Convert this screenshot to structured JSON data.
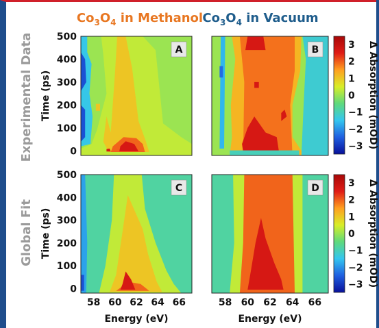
{
  "chart_data": {
    "type": "heatmap",
    "column_titles": [
      {
        "pre": "Co",
        "sub1": "3",
        "mid": "O",
        "sub2": "4",
        "post": " in Methanol",
        "color": "#e87722"
      },
      {
        "pre": "Co",
        "sub1": "3",
        "mid": "O",
        "sub2": "4",
        "post": " in Vacuum",
        "color": "#1f5d8c"
      }
    ],
    "row_titles": [
      "Experimental Data",
      "Global Fit"
    ],
    "xlabel": "Energy (eV)",
    "ylabel": "Time (ps)",
    "xlim": [
      56.8,
      67.2
    ],
    "ylim": [
      -20,
      500
    ],
    "x_ticks": [
      "58",
      "60",
      "62",
      "64",
      "66"
    ],
    "y_ticks": [
      "0",
      "100",
      "200",
      "300",
      "400",
      "500"
    ],
    "colorbar": {
      "label": "Δ Absorption (mOD)",
      "ticks": [
        "3",
        "2",
        "1",
        "0",
        "−1",
        "−2",
        "−3"
      ],
      "range": [
        -3.4,
        3.4
      ],
      "colors": [
        "#08109a",
        "#1f5fe0",
        "#33c6ef",
        "#5ed97c",
        "#d8ee28",
        "#ffa020",
        "#e01c16",
        "#a80808"
      ]
    },
    "panels": [
      {
        "label": "A",
        "background": 0.0,
        "layers": [
          {
            "level": -1.4,
            "polygon": [
              [
                56.8,
                20
              ],
              [
                57.7,
                30
              ],
              [
                57.9,
                150
              ],
              [
                57.6,
                250
              ],
              [
                57.8,
                380
              ],
              [
                57.4,
                430
              ],
              [
                57.4,
                500
              ],
              [
                56.8,
                500
              ]
            ]
          },
          {
            "level": -2.6,
            "polygon": [
              [
                56.8,
                40
              ],
              [
                57.2,
                60
              ],
              [
                57.2,
                180
              ],
              [
                56.8,
                200
              ]
            ]
          },
          {
            "level": -2.6,
            "polygon": [
              [
                56.8,
                260
              ],
              [
                57.3,
                300
              ],
              [
                57.2,
                400
              ],
              [
                56.8,
                430
              ]
            ]
          },
          {
            "level": 0.3,
            "polygon": [
              [
                56.8,
                -20
              ],
              [
                67.2,
                -20
              ],
              [
                67.2,
                30
              ],
              [
                66.2,
                60
              ],
              [
                64.5,
                120
              ],
              [
                63.8,
                440
              ],
              [
                62.6,
                500
              ],
              [
                58.7,
                500
              ],
              [
                58.9,
                420
              ],
              [
                59.2,
                250
              ],
              [
                58.3,
                90
              ],
              [
                57.8,
                30
              ],
              [
                56.8,
                10
              ]
            ]
          },
          {
            "level": 1.0,
            "polygon": [
              [
                59.2,
                150
              ],
              [
                59.6,
                80
              ],
              [
                60.0,
                340
              ],
              [
                60.2,
                500
              ],
              [
                61.0,
                500
              ],
              [
                61.6,
                360
              ],
              [
                62.2,
                130
              ],
              [
                62.9,
                40
              ],
              [
                63.2,
                -5
              ],
              [
                59.4,
                -5
              ],
              [
                58.9,
                40
              ]
            ]
          },
          {
            "level": 1.0,
            "polygon": [
              [
                58.2,
                175
              ],
              [
                58.6,
                175
              ],
              [
                58.6,
                205
              ],
              [
                58.2,
                205
              ]
            ]
          },
          {
            "level": 1.9,
            "polygon": [
              [
                59.6,
                -5
              ],
              [
                62.8,
                -5
              ],
              [
                62.6,
                30
              ],
              [
                62.0,
                55
              ],
              [
                60.8,
                60
              ],
              [
                59.8,
                20
              ]
            ]
          },
          {
            "level": 2.6,
            "polygon": [
              [
                60.4,
                -2
              ],
              [
                62.2,
                -2
              ],
              [
                61.8,
                30
              ],
              [
                61.0,
                42
              ],
              [
                60.5,
                20
              ]
            ]
          },
          {
            "level": 2.6,
            "polygon": [
              [
                59.2,
                -3
              ],
              [
                59.6,
                -3
              ],
              [
                59.5,
                10
              ],
              [
                59.2,
                8
              ]
            ]
          }
        ]
      },
      {
        "label": "B",
        "background": 0.0,
        "layers": [
          {
            "level": -1.2,
            "polygon": [
              [
                64.8,
                -20
              ],
              [
                67.2,
                -20
              ],
              [
                67.2,
                500
              ],
              [
                64.9,
                500
              ],
              [
                65.2,
                400
              ],
              [
                65.0,
                200
              ]
            ]
          },
          {
            "level": -1.6,
            "polygon": [
              [
                57.5,
                10
              ],
              [
                57.9,
                10
              ],
              [
                58.0,
                500
              ],
              [
                57.6,
                500
              ]
            ]
          },
          {
            "level": -2.3,
            "polygon": [
              [
                57.5,
                320
              ],
              [
                57.8,
                320
              ],
              [
                57.8,
                370
              ],
              [
                57.5,
                370
              ]
            ]
          },
          {
            "level": 1.2,
            "polygon": [
              [
                58.4,
                -20
              ],
              [
                64.8,
                -20
              ],
              [
                64.8,
                0
              ],
              [
                64.0,
                60
              ],
              [
                64.0,
                200
              ],
              [
                64.7,
                350
              ],
              [
                64.8,
                500
              ],
              [
                58.6,
                500
              ],
              [
                58.9,
                400
              ],
              [
                58.5,
                200
              ],
              [
                58.6,
                60
              ]
            ]
          },
          {
            "level": 1.8,
            "polygon": [
              [
                59.6,
                -20
              ],
              [
                64.0,
                -20
              ],
              [
                63.8,
                200
              ],
              [
                64.2,
                350
              ],
              [
                64.2,
                500
              ],
              [
                59.3,
                500
              ],
              [
                59.7,
                300
              ]
            ]
          },
          {
            "level": 2.6,
            "polygon": [
              [
                59.6,
                -5
              ],
              [
                62.8,
                -5
              ],
              [
                62.6,
                60
              ],
              [
                61.6,
                80
              ],
              [
                60.6,
                150
              ],
              [
                60.0,
                100
              ],
              [
                59.5,
                30
              ]
            ]
          },
          {
            "level": 2.6,
            "polygon": [
              [
                59.8,
                440
              ],
              [
                61.6,
                440
              ],
              [
                61.4,
                500
              ],
              [
                60.0,
                500
              ]
            ]
          },
          {
            "level": 2.6,
            "polygon": [
              [
                60.6,
                275
              ],
              [
                61.0,
                275
              ],
              [
                61.0,
                300
              ],
              [
                60.6,
                300
              ]
            ]
          },
          {
            "level": 2.6,
            "polygon": [
              [
                63.0,
                130
              ],
              [
                63.5,
                150
              ],
              [
                63.3,
                180
              ],
              [
                63.0,
                165
              ]
            ]
          },
          {
            "level": -1.0,
            "polygon": [
              [
                58.4,
                -20
              ],
              [
                64.6,
                -20
              ],
              [
                64.6,
                2
              ],
              [
                58.4,
                2
              ]
            ]
          }
        ]
      },
      {
        "label": "C",
        "background": -0.8,
        "layers": [
          {
            "level": -1.8,
            "polygon": [
              [
                56.8,
                -20
              ],
              [
                57.3,
                -20
              ],
              [
                57.4,
                200
              ],
              [
                57.2,
                500
              ],
              [
                56.8,
                500
              ]
            ]
          },
          {
            "level": -2.6,
            "polygon": [
              [
                56.8,
                -10
              ],
              [
                57.1,
                -10
              ],
              [
                57.1,
                60
              ],
              [
                56.8,
                60
              ]
            ]
          },
          {
            "level": 0.3,
            "polygon": [
              [
                58.5,
                -20
              ],
              [
                66.2,
                -20
              ],
              [
                65.5,
                20
              ],
              [
                64.8,
                80
              ],
              [
                63.8,
                200
              ],
              [
                62.8,
                350
              ],
              [
                62.5,
                500
              ],
              [
                59.9,
                500
              ],
              [
                59.7,
                300
              ],
              [
                59.1,
                100
              ]
            ]
          },
          {
            "level": 1.0,
            "polygon": [
              [
                59.5,
                -15
              ],
              [
                64.4,
                -15
              ],
              [
                63.9,
                30
              ],
              [
                63.1,
                150
              ],
              [
                62.6,
                260
              ],
              [
                61.2,
                410
              ],
              [
                60.7,
                250
              ],
              [
                60.1,
                60
              ]
            ]
          },
          {
            "level": 1.9,
            "polygon": [
              [
                60.1,
                -10
              ],
              [
                63.2,
                -10
              ],
              [
                62.4,
                20
              ],
              [
                61.2,
                30
              ],
              [
                60.7,
                10
              ]
            ]
          },
          {
            "level": 2.6,
            "polygon": [
              [
                60.5,
                -5
              ],
              [
                61.9,
                -5
              ],
              [
                61.5,
                40
              ],
              [
                61.0,
                75
              ],
              [
                60.7,
                20
              ]
            ]
          }
        ]
      },
      {
        "label": "D",
        "background": -0.8,
        "layers": [
          {
            "level": 0.3,
            "polygon": [
              [
                58.4,
                -20
              ],
              [
                64.9,
                -20
              ],
              [
                64.9,
                500
              ],
              [
                58.7,
                500
              ],
              [
                58.8,
                200
              ]
            ]
          },
          {
            "level": 1.9,
            "polygon": [
              [
                59.3,
                -20
              ],
              [
                64.2,
                -20
              ],
              [
                64.0,
                500
              ],
              [
                59.7,
                500
              ],
              [
                59.6,
                200
              ]
            ]
          },
          {
            "level": 2.6,
            "polygon": [
              [
                60.0,
                -5
              ],
              [
                63.2,
                -5
              ],
              [
                63.0,
                40
              ],
              [
                62.4,
                110
              ],
              [
                61.6,
                220
              ],
              [
                61.2,
                310
              ],
              [
                60.7,
                200
              ],
              [
                60.3,
                80
              ]
            ]
          }
        ]
      }
    ]
  }
}
